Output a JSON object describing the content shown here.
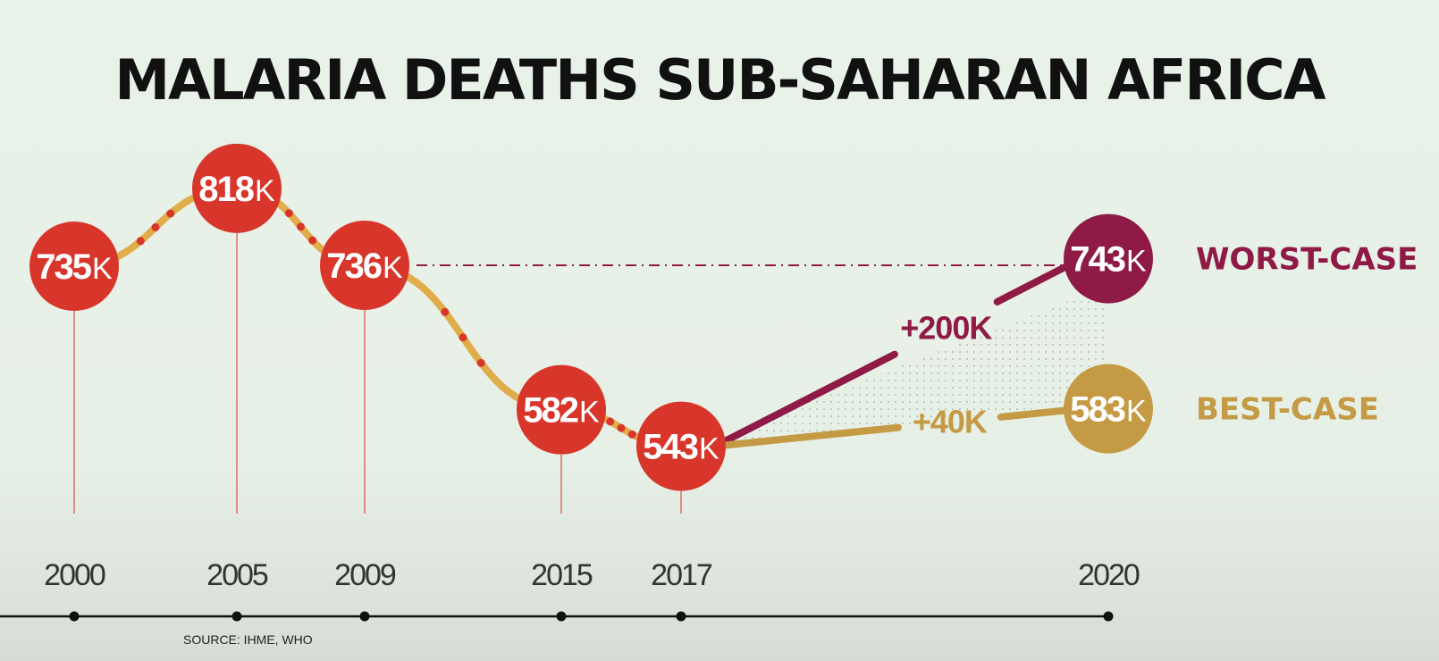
{
  "chart_data": {
    "type": "line",
    "title": "MALARIA DEATHS SUB-SAHARAN AFRICA",
    "source": "SOURCE: IHME, WHO",
    "unit_suffix": "K",
    "y_unit": "thousands of deaths",
    "x_ticks": [
      "2000",
      "2005",
      "2009",
      "2015",
      "2017",
      "2020"
    ],
    "series": [
      {
        "values": [
          {
            "x": 2000,
            "y": 735,
            "label": "735"
          },
          {
            "x": 2005,
            "y": 818,
            "label": "818"
          },
          {
            "x": 2009,
            "y": 736,
            "label": "736"
          },
          {
            "x": 2015,
            "y": 582,
            "label": "582"
          },
          {
            "x": 2017,
            "y": 543,
            "label": "543"
          }
        ]
      }
    ],
    "projections": [
      {
        "name": "WORST-CASE",
        "from": {
          "x": 2017,
          "y": 543
        },
        "to": {
          "x": 2020,
          "y": 743
        },
        "label": "743",
        "delta": "+200K",
        "color": "#8e1a45"
      },
      {
        "name": "BEST-CASE",
        "from": {
          "x": 2017,
          "y": 543
        },
        "to": {
          "x": 2020,
          "y": 583
        },
        "label": "583",
        "delta": "+40K",
        "color": "#c49a45"
      }
    ],
    "reference_line": {
      "from_x": 2009,
      "to_x": 2020,
      "style": "dash-dot"
    },
    "grid": false,
    "colors": {
      "historic_bubble": "#d8362a",
      "historic_line": "#e0ad4a",
      "worst_case": "#8e1a45",
      "best_case": "#c49a45",
      "axis": "#111111"
    }
  }
}
